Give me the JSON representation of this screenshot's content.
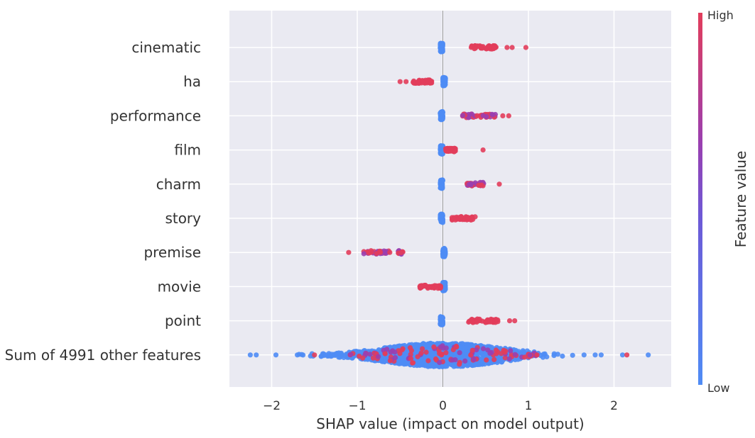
{
  "chart_data": {
    "type": "scatter",
    "subtype": "shap-beeswarm",
    "xlabel": "SHAP value (impact on model output)",
    "xlim": [
      -2.5,
      2.65
    ],
    "x_ticks": [
      -2,
      -1,
      0,
      1,
      2
    ],
    "x_tick_labels": [
      "−2",
      "−1",
      "0",
      "1",
      "2"
    ],
    "grid": true,
    "colorbar": {
      "title": "Feature value",
      "high_label": "High",
      "low_label": "Low",
      "high_color": "#ff0051",
      "mid_color": "#8a36b8",
      "low_color": "#008bfb"
    },
    "features": [
      {
        "name": "cinematic",
        "low_range": [
          -0.03,
          0.0
        ],
        "high_range": [
          0.32,
          0.65
        ],
        "outliers": [
          0.75,
          0.81,
          0.97
        ]
      },
      {
        "name": "ha",
        "low_range": [
          0.0,
          0.03
        ],
        "high_range": [
          -0.35,
          -0.13
        ],
        "outliers": [
          -0.5,
          -0.43
        ]
      },
      {
        "name": "performance",
        "low_range": [
          -0.03,
          0.0
        ],
        "high_range": [
          0.23,
          0.62
        ],
        "outliers": [
          0.7,
          0.77
        ]
      },
      {
        "name": "film",
        "low_range": [
          -0.03,
          0.0
        ],
        "high_range": [
          0.03,
          0.15
        ],
        "outliers": [
          0.47
        ]
      },
      {
        "name": "charm",
        "low_range": [
          -0.03,
          0.0
        ],
        "high_range": [
          0.28,
          0.48
        ],
        "outliers": [
          0.66
        ]
      },
      {
        "name": "story",
        "low_range": [
          -0.03,
          0.0
        ],
        "high_range": [
          0.1,
          0.38
        ],
        "outliers": []
      },
      {
        "name": "premise",
        "low_range": [
          0.0,
          0.03
        ],
        "high_range": [
          -0.95,
          -0.45
        ],
        "outliers": [
          -1.1,
          -0.73,
          -0.62
        ]
      },
      {
        "name": "movie",
        "low_range": [
          0.0,
          0.03
        ],
        "high_range": [
          -0.28,
          -0.02
        ],
        "outliers": []
      },
      {
        "name": "point",
        "low_range": [
          -0.03,
          0.0
        ],
        "high_range": [
          0.3,
          0.65
        ],
        "outliers": [
          0.78,
          0.84
        ]
      },
      {
        "name": "Sum of 4991 other features",
        "low_range": [
          -2.25,
          2.4
        ],
        "high_range": [
          -1.5,
          2.15
        ],
        "outliers": [
          -2.25,
          -2.18,
          2.1,
          2.15,
          2.4
        ]
      }
    ]
  }
}
